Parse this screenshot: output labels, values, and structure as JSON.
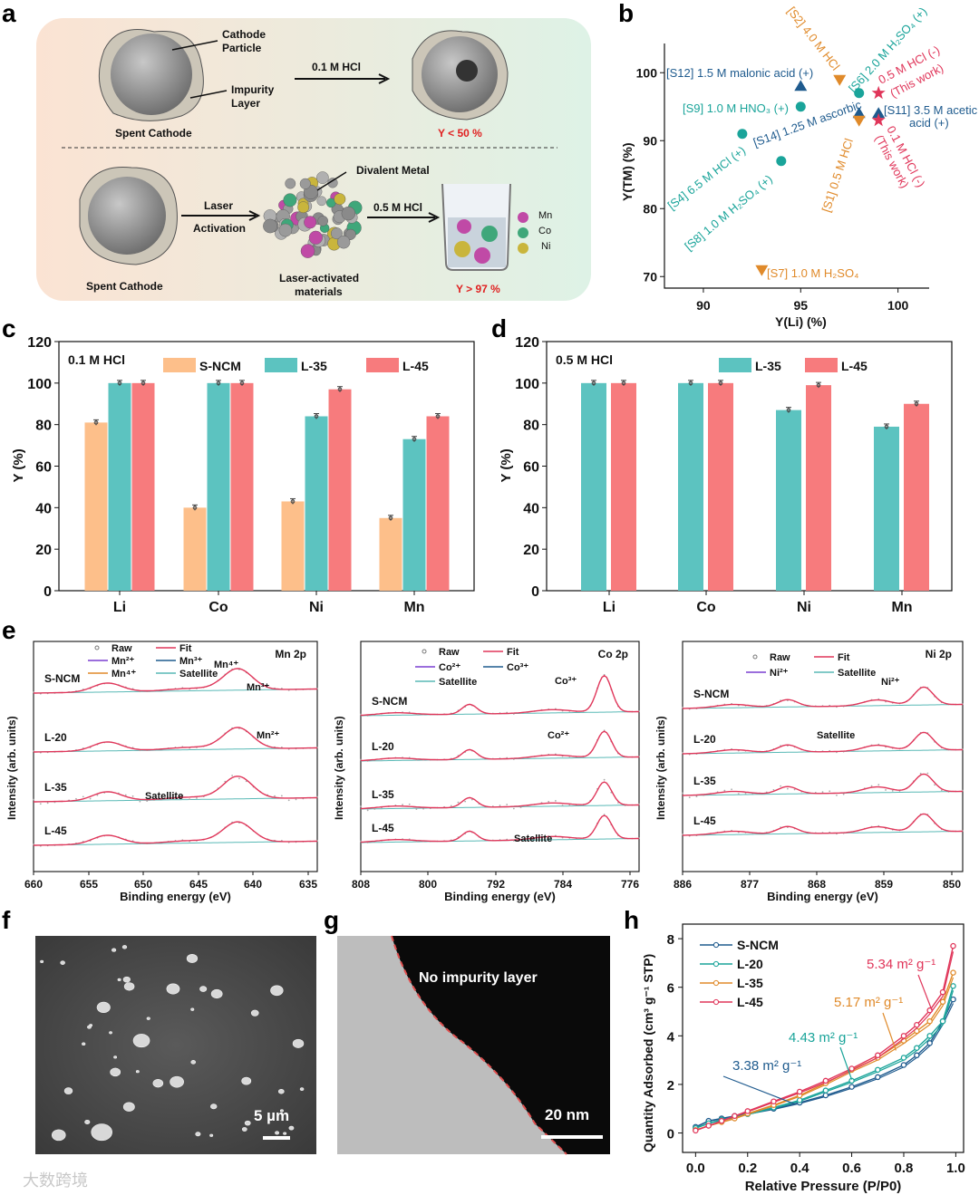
{
  "figure_labels": {
    "a": "a",
    "b": "b",
    "c": "c",
    "d": "d",
    "e": "e",
    "f": "f",
    "g": "g",
    "h": "h"
  },
  "panel_a": {
    "cathode_particle_1": "Cathode",
    "cathode_particle_2": "Particle",
    "impurity_1": "Impurity",
    "impurity_2": "Layer",
    "spent_cathode_top": "Spent Cathode",
    "acid_top": "0.1 M HCl",
    "yield_top": "Y < 50 %",
    "divalent_metal": "Divalent Metal",
    "laser_1": "Laser",
    "laser_2": "Activation",
    "acid_bottom": "0.5 M HCl",
    "laser_mat_1": "Laser-activated",
    "laser_mat_2": "materials",
    "spent_cathode_bottom": "Spent Cathode",
    "yield_bottom": "Y > 97 %",
    "legend": [
      "Mn",
      "Co",
      "Ni"
    ]
  },
  "panel_f": {
    "scale_bar": "5 µm"
  },
  "panel_g": {
    "annotation": "No impurity layer",
    "scale_bar": "20 nm"
  },
  "watermark": "大数跨境",
  "colors": {
    "s_ncm": "#fdbf8a",
    "l35": "#5cc3c0",
    "l45": "#f77b7d",
    "navy": "#1f5b8e",
    "teal": "#1aa49a",
    "orange": "#e08a2a",
    "red": "#e0365a"
  },
  "chart_data": [
    {
      "id": "b",
      "type": "scatter",
      "xlabel": "Y(Li) (%)",
      "ylabel": "Y(TM) (%)",
      "xlim": [
        88,
        101.6
      ],
      "ylim": [
        68.3,
        104.3
      ],
      "xticks": [
        "90",
        "95",
        "100"
      ],
      "yticks": [
        "70",
        "80",
        "90",
        "100"
      ],
      "points": [
        {
          "label": "[S12] 1.5 M malonic acid (+)",
          "x": 95,
          "y": 98,
          "marker": "triangle",
          "color": "navy"
        },
        {
          "label": "[S9] 1.0 M HNO₃ (+)",
          "x": 95,
          "y": 95,
          "marker": "circle",
          "color": "teal"
        },
        {
          "label": "[S4] 6.5 M HCl (+)",
          "x": 92,
          "y": 91,
          "marker": "circle",
          "color": "teal"
        },
        {
          "label": "[S8] 1.0 M H₂SO₄ (+)",
          "x": 94,
          "y": 87,
          "marker": "circle",
          "color": "teal"
        },
        {
          "label": "[S2] 4.0 M HCl",
          "x": 97,
          "y": 99,
          "marker": "triangle-down",
          "color": "orange"
        },
        {
          "label": "[S6] 2.0 M H₂SO₄ (+)",
          "x": 98,
          "y": 97,
          "marker": "circle",
          "color": "teal"
        },
        {
          "label": "[S14] 1.25 M ascorbic",
          "x": 98,
          "y": 94,
          "marker": "triangle",
          "color": "navy"
        },
        {
          "label": "[S1] 0.5 M HCl",
          "x": 98,
          "y": 93,
          "marker": "triangle-down",
          "color": "orange"
        },
        {
          "label": "[S11] 3.5 M acetic",
          "label2": "acid (+)",
          "x": 99,
          "y": 94,
          "marker": "triangle",
          "color": "navy"
        },
        {
          "label": "0.5 M HCl (-)",
          "label2": "(This work)",
          "x": 99,
          "y": 97,
          "marker": "star",
          "color": "red"
        },
        {
          "label": "0.1 M HCl (-)",
          "label2": "(This work)",
          "x": 99,
          "y": 93,
          "marker": "star",
          "color": "red"
        },
        {
          "label": "[S7] 1.0 M H₂SO₄",
          "x": 93,
          "y": 71,
          "marker": "triangle-down",
          "color": "orange"
        }
      ]
    },
    {
      "id": "c",
      "type": "bar",
      "title": "0.1 M HCl",
      "categories": [
        "Li",
        "Co",
        "Ni",
        "Mn"
      ],
      "ylabel": "Y (%)",
      "ylim": [
        0,
        120
      ],
      "yticks": [
        "0",
        "20",
        "40",
        "60",
        "80",
        "100",
        "120"
      ],
      "series": [
        {
          "name": "S-NCM",
          "color": "s_ncm",
          "values": [
            81,
            40,
            43,
            35
          ]
        },
        {
          "name": "L-35",
          "color": "l35",
          "values": [
            100,
            100,
            84,
            73
          ]
        },
        {
          "name": "L-45",
          "color": "l45",
          "values": [
            100,
            100,
            97,
            84
          ]
        }
      ]
    },
    {
      "id": "d",
      "type": "bar",
      "title": "0.5 M HCl",
      "categories": [
        "Li",
        "Co",
        "Ni",
        "Mn"
      ],
      "ylabel": "Y (%)",
      "ylim": [
        0,
        120
      ],
      "yticks": [
        "0",
        "20",
        "40",
        "60",
        "80",
        "100",
        "120"
      ],
      "series": [
        {
          "name": "L-35",
          "color": "l35",
          "values": [
            100,
            100,
            87,
            79
          ]
        },
        {
          "name": "L-45",
          "color": "l45",
          "values": [
            100,
            100,
            99,
            90
          ]
        }
      ]
    },
    {
      "id": "e1",
      "type": "line",
      "title": "Mn 2p",
      "xlabel": "Binding energy (eV)",
      "ylabel": "Intensity (arb. units)",
      "xlim": [
        660,
        635
      ],
      "xticks": [
        "660",
        "655",
        "650",
        "645",
        "640",
        "635"
      ],
      "legend": [
        "Raw",
        "Fit",
        "Mn²⁺",
        "Mn³⁺",
        "Mn⁴⁺",
        "Satellite"
      ],
      "samples": [
        "S-NCM",
        "L-20",
        "L-35",
        "L-45"
      ],
      "annotations": [
        "Mn⁴⁺",
        "Mn³⁺",
        "Mn²⁺",
        "Satellite"
      ],
      "peaks_eV": [
        642,
        653.7,
        647
      ]
    },
    {
      "id": "e2",
      "type": "line",
      "title": "Co 2p",
      "xlabel": "Binding energy (eV)",
      "ylabel": "Intensity (arb. units)",
      "xlim": [
        808,
        776
      ],
      "xticks": [
        "808",
        "800",
        "792",
        "784",
        "776"
      ],
      "legend": [
        "Raw",
        "Fit",
        "Co²⁺",
        "Co³⁺",
        "Satellite"
      ],
      "samples": [
        "S-NCM",
        "L-20",
        "L-35",
        "L-45"
      ],
      "annotations": [
        "Co³⁺",
        "Co²⁺",
        "Satellite"
      ],
      "peaks_eV": [
        780,
        795.5,
        786,
        804
      ]
    },
    {
      "id": "e3",
      "type": "line",
      "title": "Ni 2p",
      "xlabel": "Binding energy (eV)",
      "ylabel": "Intensity (arb. units)",
      "xlim": [
        886,
        850
      ],
      "xticks": [
        "886",
        "877",
        "868",
        "859",
        "850"
      ],
      "legend": [
        "Raw",
        "Fit",
        "Ni²⁺",
        "Satellite"
      ],
      "samples": [
        "S-NCM",
        "L-20",
        "L-35",
        "L-45"
      ],
      "annotations": [
        "Ni²⁺",
        "Satellite"
      ],
      "peaks_eV": [
        855,
        861,
        872.5,
        879.5
      ]
    },
    {
      "id": "h",
      "type": "line",
      "xlabel": "Relative Pressure (P/P0)",
      "ylabel": "Quantity Adsorbed (cm³ g⁻¹ STP)",
      "xlim": [
        -0.05,
        1.03
      ],
      "ylim": [
        -0.8,
        8.6
      ],
      "xticks": [
        "0.0",
        "0.2",
        "0.4",
        "0.6",
        "0.8",
        "1.0"
      ],
      "yticks": [
        "0",
        "2",
        "4",
        "6",
        "8"
      ],
      "x": [
        0,
        0.05,
        0.1,
        0.15,
        0.2,
        0.3,
        0.4,
        0.5,
        0.6,
        0.7,
        0.8,
        0.85,
        0.9,
        0.95,
        0.99
      ],
      "series": [
        {
          "name": "S-NCM",
          "color": "#1f5b8e",
          "area": "3.38 m² g⁻¹",
          "values": [
            0.25,
            0.5,
            0.6,
            0.7,
            0.8,
            1.0,
            1.25,
            1.55,
            1.9,
            2.3,
            2.8,
            3.2,
            3.7,
            4.6,
            5.5
          ]
        },
        {
          "name": "L-20",
          "color": "#1aa49a",
          "area": "4.43 m² g⁻¹",
          "values": [
            0.2,
            0.4,
            0.55,
            0.65,
            0.78,
            1.05,
            1.35,
            1.75,
            2.15,
            2.6,
            3.1,
            3.5,
            4.0,
            4.6,
            6.05
          ]
        },
        {
          "name": "L-35",
          "color": "#e08a2a",
          "area": "5.17 m² g⁻¹",
          "values": [
            0.12,
            0.3,
            0.45,
            0.6,
            0.8,
            1.15,
            1.55,
            2.05,
            2.6,
            3.1,
            3.8,
            4.2,
            4.6,
            5.4,
            6.6
          ]
        },
        {
          "name": "L-45",
          "color": "#e0365a",
          "area": "5.34 m² g⁻¹",
          "values": [
            0.1,
            0.3,
            0.5,
            0.7,
            0.9,
            1.3,
            1.7,
            2.15,
            2.65,
            3.2,
            4.0,
            4.45,
            5.05,
            5.8,
            7.7
          ]
        }
      ]
    }
  ]
}
